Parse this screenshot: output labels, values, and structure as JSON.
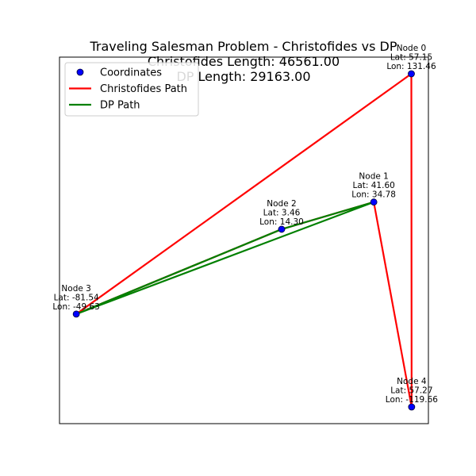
{
  "chart_data": {
    "type": "scatter",
    "title_lines": [
      "Traveling Salesman Problem - Christofides vs DP",
      "Christofides Length: 46561.00",
      "DP Length: 29163.00"
    ],
    "xlabel": "",
    "ylabel": "",
    "axes_visible": false,
    "grid": false,
    "legend_position": "top-left",
    "nodes": [
      {
        "name": "Node 0",
        "lat": 57.15,
        "lon": 131.46,
        "lat_label": "Lat: 57.15",
        "lon_label": "Lon: 131.46"
      },
      {
        "name": "Node 1",
        "lat": 41.6,
        "lon": 34.78,
        "lat_label": "Lat: 41.60",
        "lon_label": "Lon: 34.78"
      },
      {
        "name": "Node 2",
        "lat": 3.46,
        "lon": 14.3,
        "lat_label": "Lat: 3.46",
        "lon_label": "Lon: 14.30"
      },
      {
        "name": "Node 3",
        "lat": -81.54,
        "lon": -49.63,
        "lat_label": "Lat: -81.54",
        "lon_label": "Lon: -49.63"
      },
      {
        "name": "Node 4",
        "lat": 57.27,
        "lon": -119.66,
        "lat_label": "Lat: 57.27",
        "lon_label": "Lon: -119.66"
      }
    ],
    "series": [
      {
        "name": "Coordinates",
        "kind": "points",
        "color": "#0000ff"
      },
      {
        "name": "Christofides Path",
        "kind": "path",
        "color": "#ff0000",
        "order": [
          3,
          0,
          4,
          1,
          2,
          3
        ]
      },
      {
        "name": "DP Path",
        "kind": "path",
        "color": "#008000",
        "order": [
          3,
          2,
          1,
          3
        ]
      }
    ]
  }
}
